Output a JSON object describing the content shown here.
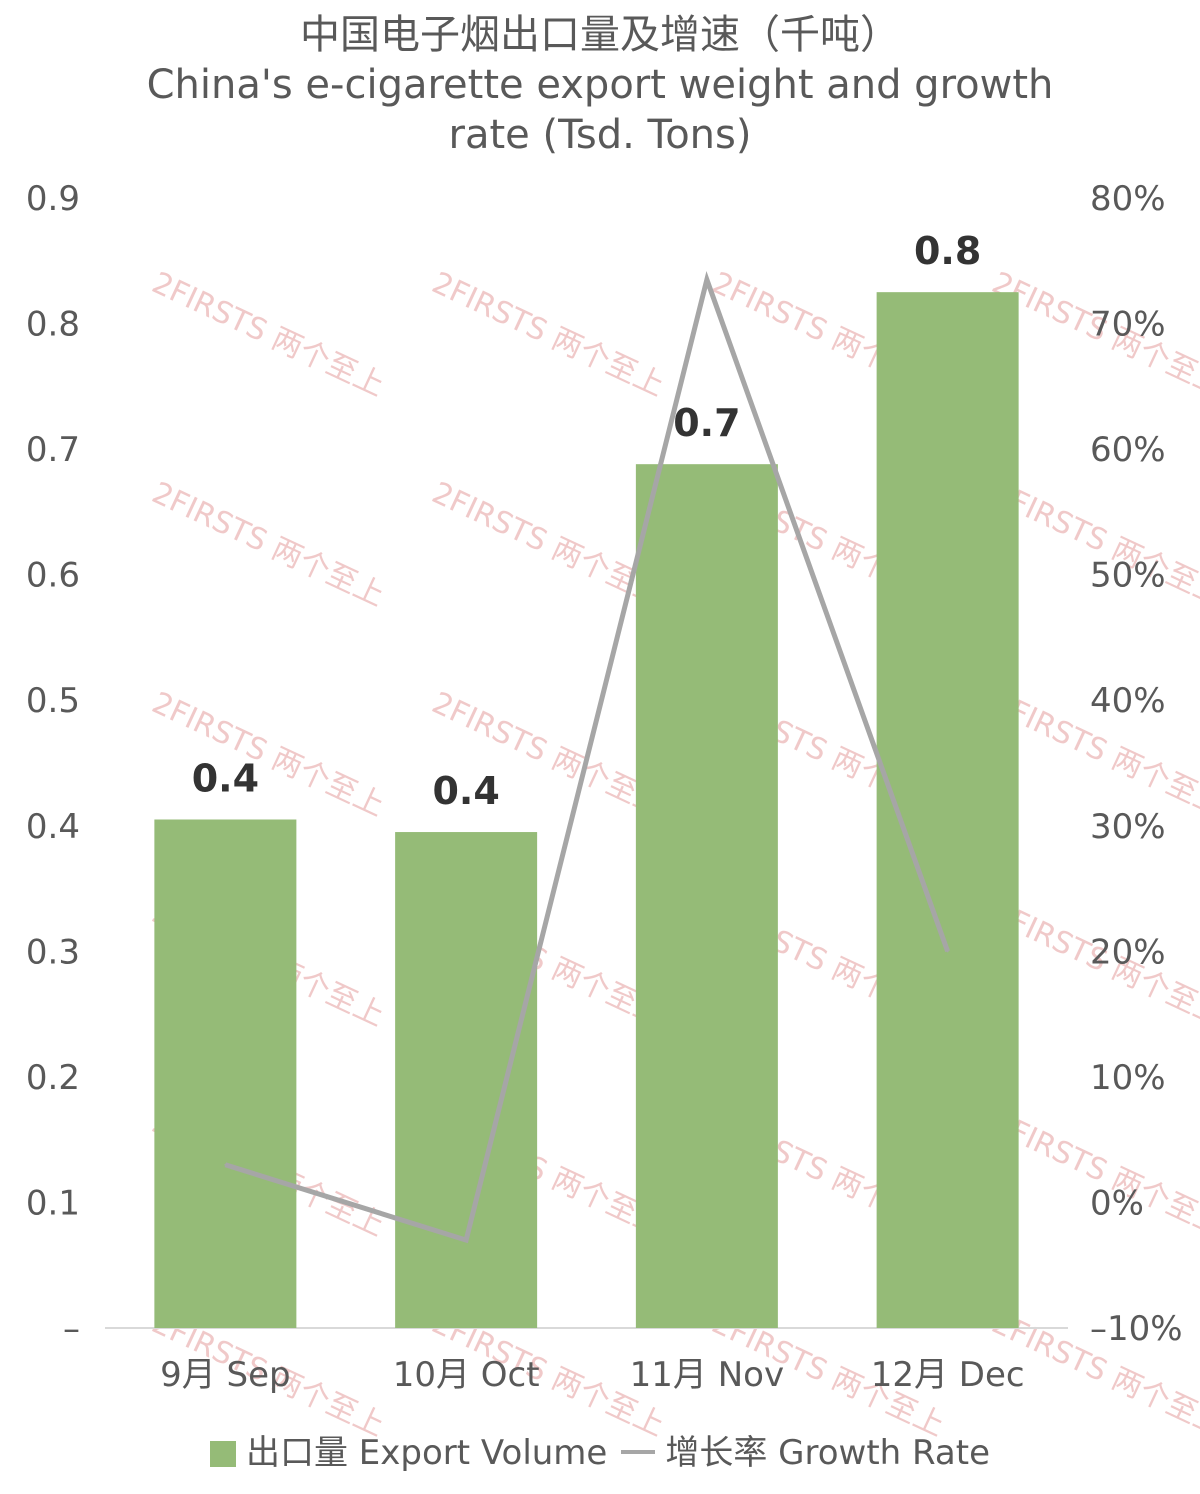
{
  "chart_data": {
    "type": "bar+line",
    "title": "中国电子烟出口量及增速（千吨）",
    "subtitle_line1": "China's e-cigarette export weight and growth",
    "subtitle_line2": "rate (Tsd. Tons)",
    "categories": [
      "9月 Sep",
      "10月 Oct",
      "11月 Nov",
      "12月 Dec"
    ],
    "series": [
      {
        "name": "出口量 Export Volume",
        "type": "bar",
        "axis": "left",
        "color": "#95bb77",
        "values": [
          0.405,
          0.395,
          0.688,
          0.825
        ],
        "labels": [
          "0.4",
          "0.4",
          "0.7",
          "0.8"
        ]
      },
      {
        "name": "增长率 Growth Rate",
        "type": "line",
        "axis": "right",
        "color": "#a6a6a6",
        "values": [
          3,
          -3,
          73.5,
          20
        ]
      }
    ],
    "y_left": {
      "ticks": [
        0,
        0.1,
        0.2,
        0.3,
        0.4,
        0.5,
        0.6,
        0.7,
        0.8,
        0.9
      ],
      "tick_labels": [
        "–",
        "0.1",
        "0.2",
        "0.3",
        "0.4",
        "0.5",
        "0.6",
        "0.7",
        "0.8",
        "0.9"
      ],
      "ylim": [
        0,
        0.9
      ]
    },
    "y_right": {
      "ticks": [
        -10,
        0,
        10,
        20,
        30,
        40,
        50,
        60,
        70,
        80
      ],
      "tick_labels": [
        "–10%",
        "0%",
        "10%",
        "20%",
        "30%",
        "40%",
        "50%",
        "60%",
        "70%",
        "80%"
      ],
      "ylim": [
        -10,
        80
      ]
    },
    "grid": false,
    "legend_position": "bottom",
    "watermark_text": "2FIRSTS 两个至上"
  }
}
